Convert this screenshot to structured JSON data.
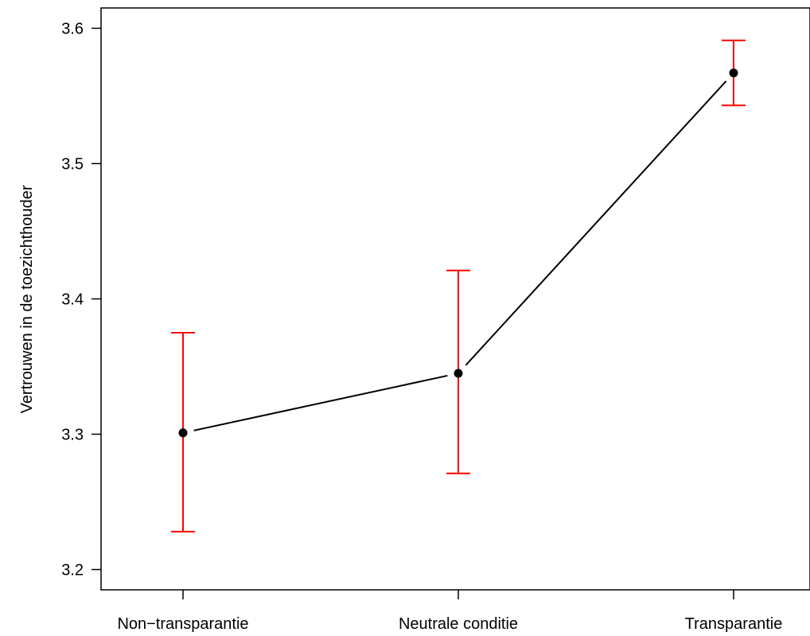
{
  "chart_data": {
    "type": "line",
    "title": "",
    "xlabel": "",
    "ylabel": "Vertrouwen in de toezichthouder",
    "categories": [
      "Non−transparantie",
      "Neutrale conditie",
      "Transparantie"
    ],
    "values": [
      3.301,
      3.345,
      3.567
    ],
    "error_lower": [
      3.228,
      3.271,
      3.543
    ],
    "error_upper": [
      3.375,
      3.421,
      3.591
    ],
    "yticks": [
      "3.2",
      "3.3",
      "3.4",
      "3.5",
      "3.6"
    ],
    "ylim": [
      3.185,
      3.615
    ],
    "grid": false,
    "legend": "none",
    "colors": {
      "line": "#000000",
      "points": "#000000",
      "error_bars": "#ff0000",
      "axes": "#000000"
    }
  }
}
